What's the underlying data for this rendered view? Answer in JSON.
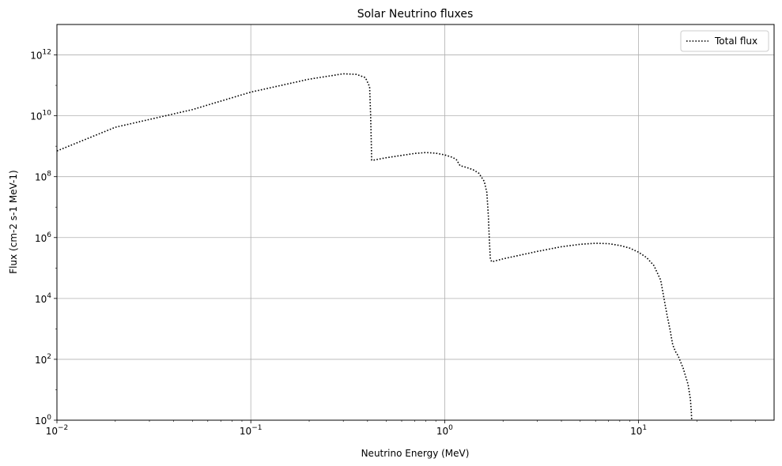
{
  "chart_data": {
    "type": "line",
    "title": "Solar Neutrino fluxes",
    "xlabel": "Neutrino Energy (MeV)",
    "ylabel": "Flux (cm-2 s-1 MeV-1)",
    "xscale": "log",
    "yscale": "log",
    "xlim": [
      0.01,
      50
    ],
    "ylim": [
      1,
      10000000000000.0
    ],
    "grid": true,
    "legend_position": "top-right",
    "x_ticks": [
      {
        "value": 0.01,
        "base": "10",
        "exp": "−2"
      },
      {
        "value": 0.1,
        "base": "10",
        "exp": "−1"
      },
      {
        "value": 1,
        "base": "10",
        "exp": "0"
      },
      {
        "value": 10,
        "base": "10",
        "exp": "1"
      }
    ],
    "y_ticks": [
      {
        "value": 1,
        "base": "10",
        "exp": "0"
      },
      {
        "value": 100,
        "base": "10",
        "exp": "2"
      },
      {
        "value": 10000,
        "base": "10",
        "exp": "4"
      },
      {
        "value": 1000000,
        "base": "10",
        "exp": "6"
      },
      {
        "value": 100000000,
        "base": "10",
        "exp": "8"
      },
      {
        "value": 10000000000,
        "base": "10",
        "exp": "10"
      },
      {
        "value": 1000000000000,
        "base": "10",
        "exp": "12"
      }
    ],
    "series": [
      {
        "name": "Total flux",
        "color": "#000000",
        "style": "dotted",
        "x": [
          0.01,
          0.02,
          0.05,
          0.1,
          0.2,
          0.3,
          0.35,
          0.39,
          0.41,
          0.415,
          0.418,
          0.42,
          0.43,
          0.5,
          0.6,
          0.7,
          0.8,
          0.9,
          1.0,
          1.1,
          1.15,
          1.2,
          1.3,
          1.4,
          1.5,
          1.6,
          1.65,
          1.68,
          1.7,
          1.72,
          1.74,
          1.75,
          2.0,
          3.0,
          4.0,
          5.0,
          6.0,
          7.0,
          8.0,
          9.0,
          10.0,
          11.0,
          12.0,
          13.0,
          14.0,
          14.5,
          15.0,
          15.5,
          16.0,
          17.0,
          18.0,
          18.5,
          18.7,
          18.79
        ],
        "y": [
          700000000.0,
          4200000000.0,
          16000000000.0,
          60000000000.0,
          160000000000.0,
          240000000000.0,
          230000000000.0,
          180000000000.0,
          90000000000.0,
          10000000000.0,
          1500000000.0,
          350000000.0,
          350000000.0,
          420000000.0,
          500000000.0,
          580000000.0,
          620000000.0,
          590000000.0,
          520000000.0,
          430000000.0,
          360000000.0,
          230000000.0,
          200000000.0,
          170000000.0,
          130000000.0,
          70000000.0,
          30000000.0,
          5000000.0,
          800000.0,
          200000.0,
          170000.0,
          160000.0,
          200000.0,
          350000.0,
          500000.0,
          600000.0,
          650000.0,
          630000.0,
          550000.0,
          450000.0,
          330000.0,
          220000.0,
          120000.0,
          40000.0,
          3000.0,
          1000.0,
          300.0,
          180.0,
          130.0,
          50.0,
          15.0,
          5,
          2,
          1
        ]
      }
    ]
  }
}
